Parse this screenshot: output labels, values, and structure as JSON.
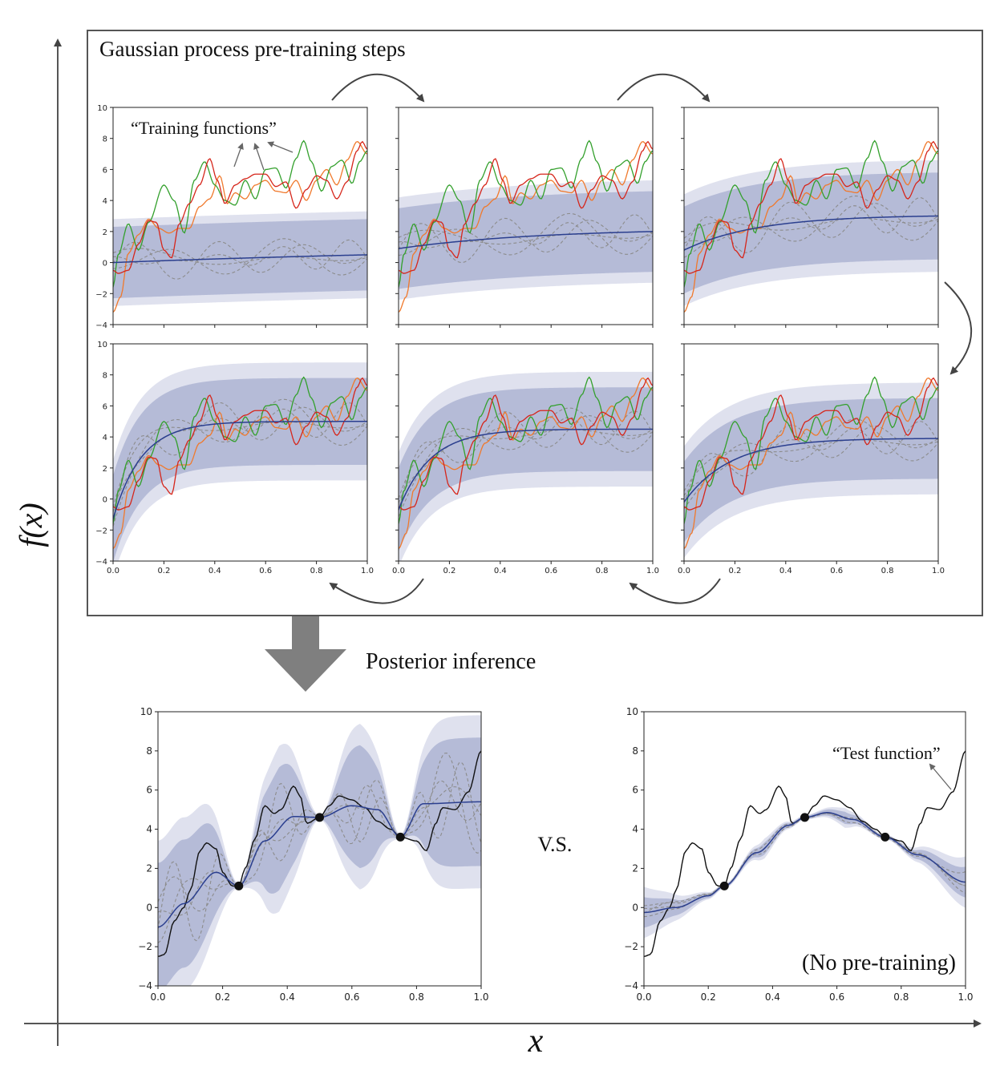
{
  "figure": {
    "top_box_title": "Gaussian process pre-training steps",
    "training_annotation": "“Training functions”",
    "posterior_label": "Posterior inference",
    "vs_label": "V.S.",
    "test_annotation": "“Test function”",
    "no_pretrain_label": "(No pre-training)",
    "y_axis_label": "f(x)",
    "x_axis_label": "x"
  },
  "colors": {
    "mean": "#2b3f8f",
    "band_inner": "#9aa2c8",
    "band_outer": "#c9cde3",
    "sample": "#8c8c8c",
    "train_red": "#d6261b",
    "train_orange": "#f0792c",
    "train_green": "#33a02c",
    "test": "#111111"
  },
  "chart_data": [
    {
      "id": "step1",
      "type": "line",
      "xlim": [
        0,
        1
      ],
      "ylim": [
        -4,
        10
      ],
      "yticks": [
        -4,
        -2,
        0,
        2,
        4,
        6,
        8,
        10
      ],
      "xticks": [],
      "mean": {
        "start": 0.0,
        "end": 0.5,
        "k": 0.5
      },
      "sd_inner": 2.3,
      "sd_outer": 2.8
    },
    {
      "id": "step2",
      "type": "line",
      "xlim": [
        0,
        1
      ],
      "ylim": [
        -4,
        10
      ],
      "yticks": [],
      "xticks": [],
      "mean": {
        "start": 0.9,
        "end": 2.0,
        "k": 1.8
      },
      "sd_inner": 2.6,
      "sd_outer": 3.3
    },
    {
      "id": "step3",
      "type": "line",
      "xlim": [
        0,
        1
      ],
      "ylim": [
        -4,
        10
      ],
      "yticks": [],
      "xticks": [],
      "mean": {
        "start": 0.8,
        "end": 3.0,
        "k": 3.5
      },
      "sd_inner": 2.8,
      "sd_outer": 3.6
    },
    {
      "id": "step4",
      "type": "line",
      "xlim": [
        0,
        1
      ],
      "ylim": [
        -4,
        10
      ],
      "yticks": [
        -4,
        -2,
        0,
        2,
        4,
        6,
        8,
        10
      ],
      "xticks": [
        0.0,
        0.2,
        0.4,
        0.6,
        0.8,
        1.0
      ],
      "mean": {
        "start": -1.3,
        "end": 5.0,
        "k": 9
      },
      "sd_inner": 2.8,
      "sd_outer": 3.8
    },
    {
      "id": "step5",
      "type": "line",
      "xlim": [
        0,
        1
      ],
      "ylim": [
        -4,
        10
      ],
      "yticks": [],
      "xticks": [
        0.0,
        0.2,
        0.4,
        0.6,
        0.8,
        1.0
      ],
      "mean": {
        "start": -0.7,
        "end": 4.5,
        "k": 8
      },
      "sd_inner": 2.7,
      "sd_outer": 3.7
    },
    {
      "id": "step6",
      "type": "line",
      "xlim": [
        0,
        1
      ],
      "ylim": [
        -4,
        10
      ],
      "yticks": [],
      "xticks": [
        0.0,
        0.2,
        0.4,
        0.6,
        0.8,
        1.0
      ],
      "mean": {
        "start": -0.2,
        "end": 3.9,
        "k": 5.5
      },
      "sd_inner": 2.6,
      "sd_outer": 3.6
    },
    {
      "id": "posterior_pretrained",
      "type": "line",
      "xlim": [
        0,
        1
      ],
      "ylim": [
        -4,
        10
      ],
      "yticks": [
        -4,
        -2,
        0,
        2,
        4,
        6,
        8,
        10
      ],
      "xticks": [
        0.0,
        0.2,
        0.4,
        0.6,
        0.8,
        1.0
      ],
      "observations": [
        {
          "x": 0.25,
          "y": 1.1
        },
        {
          "x": 0.5,
          "y": 4.6
        },
        {
          "x": 0.75,
          "y": 3.6
        }
      ],
      "mean_points": [
        [
          0,
          -1.0
        ],
        [
          0.08,
          0.2
        ],
        [
          0.18,
          1.8
        ],
        [
          0.25,
          1.1
        ],
        [
          0.33,
          3.4
        ],
        [
          0.42,
          4.65
        ],
        [
          0.5,
          4.6
        ],
        [
          0.6,
          5.2
        ],
        [
          0.68,
          5.0
        ],
        [
          0.75,
          3.6
        ],
        [
          0.82,
          5.3
        ],
        [
          1.0,
          5.4
        ]
      ]
    },
    {
      "id": "posterior_no_pretraining",
      "type": "line",
      "xlim": [
        0,
        1
      ],
      "ylim": [
        -4,
        10
      ],
      "yticks": [
        -4,
        -2,
        0,
        2,
        4,
        6,
        8,
        10
      ],
      "xticks": [
        0.0,
        0.2,
        0.4,
        0.6,
        0.8,
        1.0
      ],
      "observations": [
        {
          "x": 0.25,
          "y": 1.1
        },
        {
          "x": 0.5,
          "y": 4.6
        },
        {
          "x": 0.75,
          "y": 3.6
        }
      ],
      "mean_points": [
        [
          0,
          -0.25
        ],
        [
          0.1,
          0.0
        ],
        [
          0.2,
          0.6
        ],
        [
          0.25,
          1.1
        ],
        [
          0.35,
          2.8
        ],
        [
          0.45,
          4.2
        ],
        [
          0.5,
          4.6
        ],
        [
          0.57,
          4.85
        ],
        [
          0.65,
          4.5
        ],
        [
          0.75,
          3.6
        ],
        [
          0.85,
          2.7
        ],
        [
          1.0,
          1.3
        ]
      ]
    }
  ],
  "training_functions": {
    "red": [
      [
        0,
        -0.5
      ],
      [
        0.02,
        -0.7
      ],
      [
        0.06,
        -0.5
      ],
      [
        0.1,
        1.2
      ],
      [
        0.14,
        2.7
      ],
      [
        0.17,
        2.6
      ],
      [
        0.2,
        0.8
      ],
      [
        0.23,
        0.3
      ],
      [
        0.26,
        2.5
      ],
      [
        0.3,
        3.8
      ],
      [
        0.34,
        5.0
      ],
      [
        0.38,
        6.7
      ],
      [
        0.41,
        5.3
      ],
      [
        0.44,
        3.8
      ],
      [
        0.48,
        5.0
      ],
      [
        0.52,
        5.4
      ],
      [
        0.56,
        5.7
      ],
      [
        0.6,
        5.7
      ],
      [
        0.64,
        4.9
      ],
      [
        0.68,
        5.2
      ],
      [
        0.72,
        3.5
      ],
      [
        0.76,
        4.7
      ],
      [
        0.8,
        5.6
      ],
      [
        0.84,
        5.3
      ],
      [
        0.88,
        4.1
      ],
      [
        0.92,
        5.2
      ],
      [
        0.96,
        7.2
      ],
      [
        0.98,
        7.8
      ],
      [
        1.0,
        7.3
      ]
    ],
    "orange": [
      [
        0,
        -3.2
      ],
      [
        0.03,
        -2.2
      ],
      [
        0.06,
        0.6
      ],
      [
        0.1,
        1.8
      ],
      [
        0.14,
        2.8
      ],
      [
        0.18,
        2.2
      ],
      [
        0.22,
        1.9
      ],
      [
        0.26,
        2.2
      ],
      [
        0.3,
        2.2
      ],
      [
        0.34,
        3.6
      ],
      [
        0.38,
        4.1
      ],
      [
        0.42,
        5.6
      ],
      [
        0.45,
        3.8
      ],
      [
        0.48,
        4.5
      ],
      [
        0.52,
        4.1
      ],
      [
        0.56,
        5.0
      ],
      [
        0.6,
        5.3
      ],
      [
        0.64,
        4.6
      ],
      [
        0.68,
        4.5
      ],
      [
        0.72,
        5.3
      ],
      [
        0.76,
        4.0
      ],
      [
        0.8,
        5.3
      ],
      [
        0.84,
        6.0
      ],
      [
        0.88,
        5.0
      ],
      [
        0.92,
        6.6
      ],
      [
        0.96,
        7.8
      ],
      [
        1.0,
        7.0
      ]
    ],
    "green": [
      [
        0,
        -1.6
      ],
      [
        0.02,
        0.5
      ],
      [
        0.06,
        2.5
      ],
      [
        0.1,
        0.8
      ],
      [
        0.14,
        2.6
      ],
      [
        0.2,
        5.0
      ],
      [
        0.24,
        4.0
      ],
      [
        0.28,
        1.9
      ],
      [
        0.32,
        5.3
      ],
      [
        0.36,
        6.5
      ],
      [
        0.4,
        5.0
      ],
      [
        0.44,
        4.0
      ],
      [
        0.48,
        3.7
      ],
      [
        0.52,
        5.3
      ],
      [
        0.56,
        4.1
      ],
      [
        0.6,
        6.0
      ],
      [
        0.64,
        6.1
      ],
      [
        0.68,
        4.8
      ],
      [
        0.72,
        6.7
      ],
      [
        0.75,
        7.85
      ],
      [
        0.78,
        6.5
      ],
      [
        0.82,
        4.6
      ],
      [
        0.86,
        6.2
      ],
      [
        0.9,
        6.6
      ],
      [
        0.94,
        5.1
      ],
      [
        0.97,
        6.5
      ],
      [
        1.0,
        7.2
      ]
    ]
  },
  "test_function": [
    [
      0,
      -2.5
    ],
    [
      0.02,
      -2.4
    ],
    [
      0.05,
      -0.7
    ],
    [
      0.08,
      0.0
    ],
    [
      0.1,
      0.9
    ],
    [
      0.13,
      2.9
    ],
    [
      0.15,
      3.3
    ],
    [
      0.18,
      3.0
    ],
    [
      0.2,
      1.8
    ],
    [
      0.23,
      1.1
    ],
    [
      0.25,
      1.1
    ],
    [
      0.27,
      2.0
    ],
    [
      0.3,
      3.5
    ],
    [
      0.33,
      5.2
    ],
    [
      0.36,
      4.8
    ],
    [
      0.38,
      5.0
    ],
    [
      0.42,
      6.2
    ],
    [
      0.44,
      5.7
    ],
    [
      0.46,
      4.3
    ],
    [
      0.5,
      4.6
    ],
    [
      0.53,
      5.2
    ],
    [
      0.56,
      5.7
    ],
    [
      0.6,
      5.5
    ],
    [
      0.64,
      5.1
    ],
    [
      0.68,
      4.4
    ],
    [
      0.72,
      4.0
    ],
    [
      0.75,
      3.6
    ],
    [
      0.8,
      3.4
    ],
    [
      0.83,
      2.9
    ],
    [
      0.86,
      4.3
    ],
    [
      0.88,
      5.1
    ],
    [
      0.92,
      5.0
    ],
    [
      0.96,
      5.9
    ],
    [
      1.0,
      8.0
    ]
  ]
}
